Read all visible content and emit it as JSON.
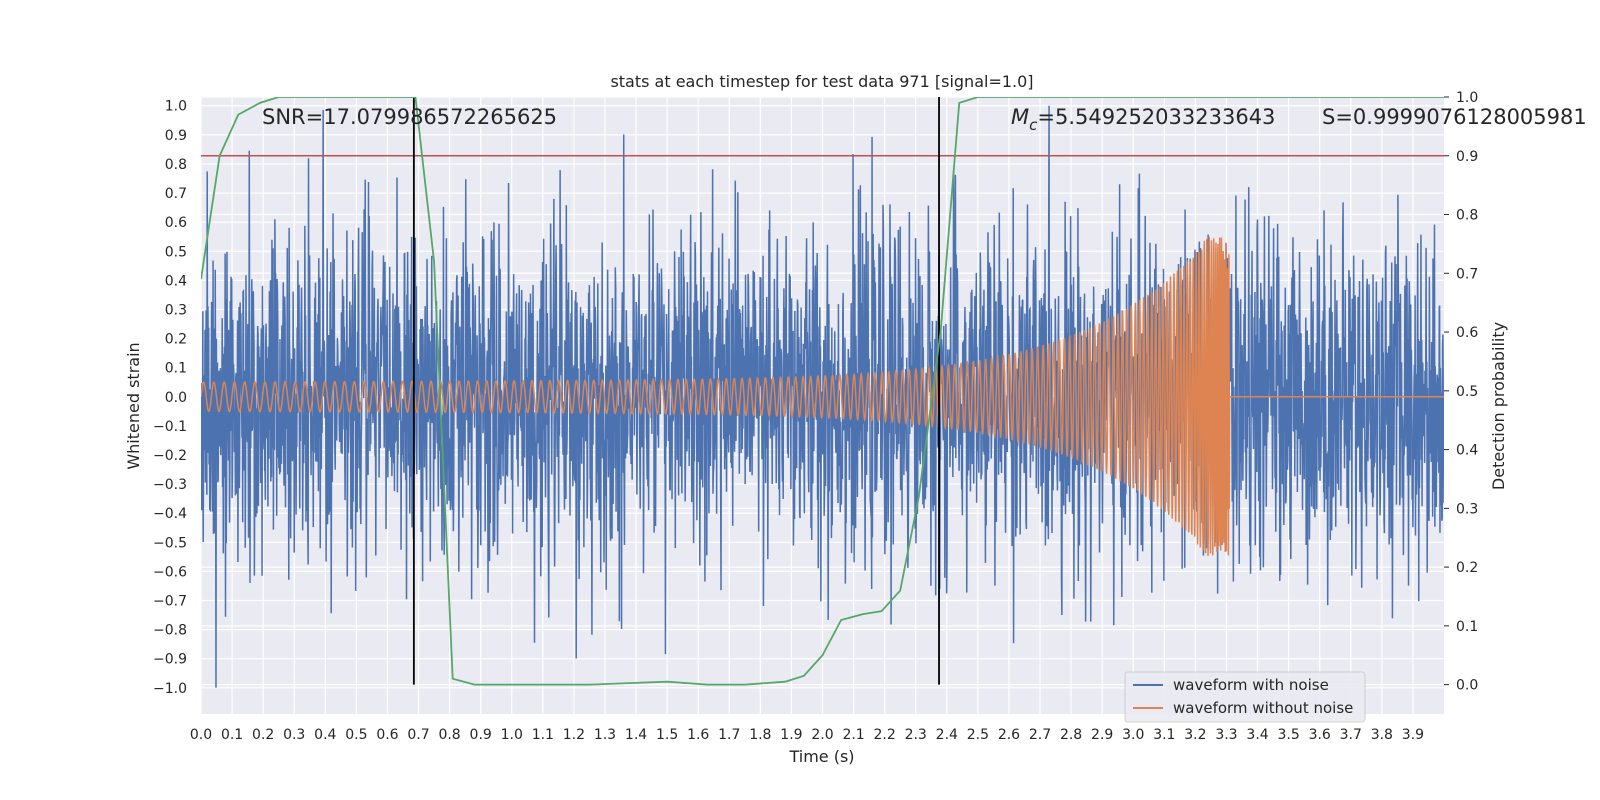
{
  "chart_data": {
    "type": "line",
    "title": "stats at each timestep for test data 971 [signal=1.0]",
    "xlabel": "Time (s)",
    "ylabel": "Whitened strain",
    "y2label": "Detection probability",
    "xlim": [
      0.0,
      4.0
    ],
    "ylim": [
      -1.09,
      1.03
    ],
    "y2lim": [
      -0.05,
      1.0
    ],
    "x_ticks": [
      "0.0",
      "0.1",
      "0.2",
      "0.3",
      "0.4",
      "0.5",
      "0.6",
      "0.7",
      "0.8",
      "0.9",
      "1.0",
      "1.1",
      "1.2",
      "1.3",
      "1.4",
      "1.5",
      "1.6",
      "1.7",
      "1.8",
      "1.9",
      "2.0",
      "2.1",
      "2.2",
      "2.3",
      "2.4",
      "2.5",
      "2.6",
      "2.7",
      "2.8",
      "2.9",
      "3.0",
      "3.1",
      "3.2",
      "3.3",
      "3.4",
      "3.5",
      "3.6",
      "3.7",
      "3.8",
      "3.9"
    ],
    "y_ticks": [
      "1.0",
      "0.9",
      "0.8",
      "0.7",
      "0.6",
      "0.5",
      "0.4",
      "0.3",
      "0.2",
      "0.1",
      "0.0",
      "-0.1",
      "-0.2",
      "-0.3",
      "-0.4",
      "-0.5",
      "-0.6",
      "-0.7",
      "-0.8",
      "-0.9",
      "-1.0"
    ],
    "y2_ticks": [
      "1.0",
      "0.9",
      "0.8",
      "0.7",
      "0.6",
      "0.5",
      "0.4",
      "0.3",
      "0.2",
      "0.1",
      "0.0"
    ],
    "grid": true,
    "legend_position": "lower-right",
    "annotations": {
      "snr": "SNR=17.079986572265625",
      "mc": "=5.549252033233643",
      "mc_symbol": "M",
      "mc_sub": "c",
      "s": "S=0.9999076128005981"
    },
    "threshold": 0.9,
    "vlines": [
      0.685,
      2.375
    ],
    "series": [
      {
        "name": "waveform with noise",
        "color": "#4c72b0",
        "axis": "left",
        "description": "noisy whitened strain, std approx 0.28, range -1.0 to 1.0, sampled over 0.0-4.0 s",
        "amplitude_std": 0.28
      },
      {
        "name": "waveform without noise",
        "color": "#dd8452",
        "axis": "left",
        "description": "chirp: amplitude 0.05 at 0 s rising to 0.55 at merger 3.31 s, then flat 0",
        "start_amplitude": 0.05,
        "peak_amplitude": 0.55,
        "merger_time": 3.31,
        "start_frequency": 30
      },
      {
        "name": "Detection probability",
        "color": "#55a868",
        "axis": "right",
        "x": [
          0.0,
          0.06,
          0.12,
          0.19,
          0.25,
          0.31,
          0.38,
          0.44,
          0.5,
          0.56,
          0.63,
          0.69,
          0.75,
          0.81,
          0.88,
          0.94,
          1.0,
          1.25,
          1.5,
          1.63,
          1.75,
          1.88,
          1.94,
          2.0,
          2.06,
          2.13,
          2.19,
          2.25,
          2.31,
          2.38,
          2.44,
          2.5,
          2.56,
          2.63,
          3.0,
          3.5,
          4.0
        ],
        "values": [
          0.69,
          0.9,
          0.97,
          0.99,
          1.0,
          1.0,
          1.0,
          1.0,
          1.0,
          1.0,
          1.0,
          1.0,
          0.72,
          0.01,
          0.0,
          0.0,
          0.0,
          0.0,
          0.005,
          0.0,
          0.0,
          0.005,
          0.015,
          0.05,
          0.11,
          0.12,
          0.125,
          0.16,
          0.32,
          0.6,
          0.99,
          1.0,
          1.0,
          1.0,
          1.0,
          1.0,
          1.0
        ]
      }
    ],
    "threshold_color": "#c44e52",
    "vline_color": "#000000",
    "background": "#eaeaf2"
  }
}
